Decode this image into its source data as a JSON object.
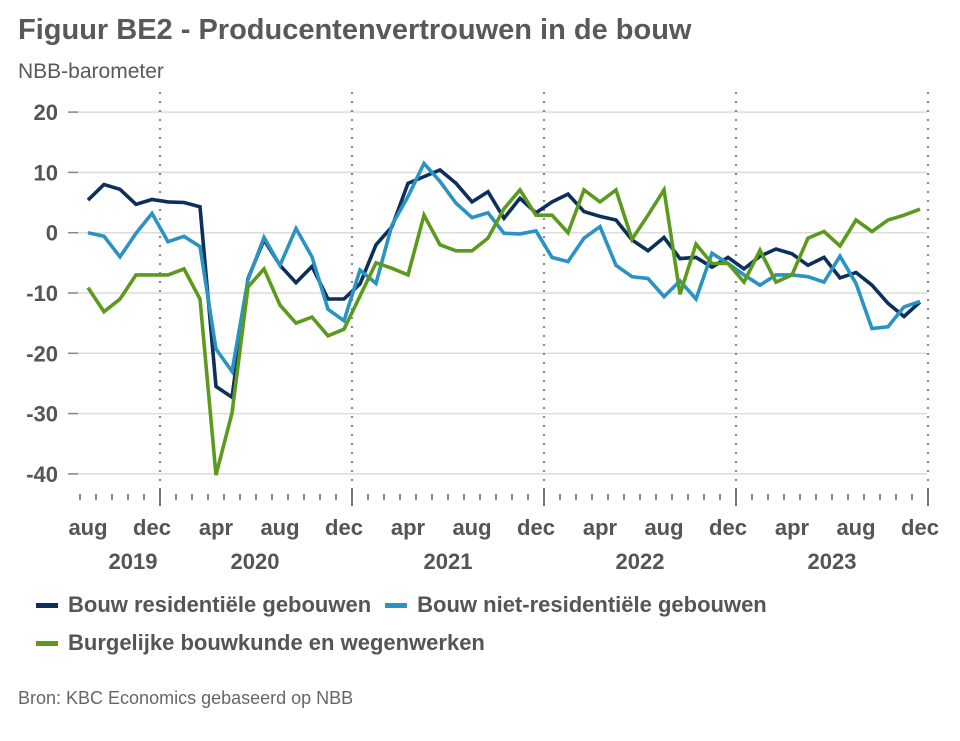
{
  "header": {
    "title": "Figuur BE2 - Producentenvertrouwen in de bouw",
    "subtitle": "NBB-barometer"
  },
  "source": "Bron: KBC Economics gebaseerd op NBB",
  "chart_data": {
    "type": "line",
    "title": "Figuur BE2 - Producentenvertrouwen in de bouw",
    "subtitle": "NBB-barometer",
    "xlabel": "",
    "ylabel": "",
    "ylim": [
      -40,
      20
    ],
    "yticks": [
      20,
      10,
      0,
      -10,
      -20,
      -30,
      -40
    ],
    "x_start": "aug 2019",
    "x_end": "dec 2023",
    "frequency": "monthly",
    "month_labels": [
      "aug",
      "dec",
      "apr",
      "aug",
      "dec",
      "apr",
      "aug",
      "dec",
      "apr",
      "aug",
      "dec",
      "apr",
      "aug",
      "dec"
    ],
    "year_labels": [
      "2019",
      "2020",
      "2021",
      "2022",
      "2023"
    ],
    "grid": true,
    "legend_position": "bottom",
    "series": [
      {
        "name": "Bouw residentiële gebouwen",
        "color": "#0c2f5c",
        "values": [
          5.4,
          8.0,
          7.2,
          4.7,
          5.5,
          5.1,
          5.0,
          4.3,
          -25.5,
          -27.3,
          -7.6,
          -1.2,
          -5.4,
          -8.3,
          -5.6,
          -11.0,
          -11.0,
          -8.5,
          -2.0,
          1.0,
          8.2,
          9.3,
          10.4,
          8.2,
          5.1,
          6.8,
          2.4,
          5.7,
          3.3,
          5.1,
          6.4,
          3.5,
          2.7,
          2.1,
          -1.2,
          -3.0,
          -0.8,
          -4.3,
          -4.1,
          -5.7,
          -4.1,
          -6.0,
          -3.9,
          -2.7,
          -3.5,
          -5.4,
          -4.1,
          -7.5,
          -6.6,
          -8.7,
          -11.7,
          -13.9,
          -11.5
        ]
      },
      {
        "name": "Bouw niet-residentiële gebouwen",
        "color": "#2b93c3",
        "values": [
          0.0,
          -0.6,
          -4.0,
          -0.1,
          3.2,
          -1.5,
          -0.6,
          -2.3,
          -19.3,
          -23.0,
          -7.8,
          -0.8,
          -5.4,
          0.7,
          -4.0,
          -12.7,
          -14.6,
          -6.2,
          -8.4,
          1.3,
          6.0,
          11.5,
          8.5,
          4.9,
          2.5,
          3.3,
          -0.1,
          -0.2,
          0.3,
          -4.1,
          -4.8,
          -0.9,
          1.0,
          -5.4,
          -7.3,
          -7.6,
          -10.6,
          -8.0,
          -11.0,
          -3.4,
          -5.1,
          -7.0,
          -8.7,
          -7.0,
          -7.0,
          -7.3,
          -8.2,
          -3.9,
          -8.4,
          -15.9,
          -15.6,
          -12.3,
          -11.4
        ]
      },
      {
        "name": "Burgelijke bouwkunde en wegenwerken",
        "color": "#5c9a1e",
        "values": [
          -9.1,
          -13.1,
          -11.0,
          -7.0,
          -7.0,
          -7.0,
          -6.0,
          -11.0,
          -40.2,
          -29.9,
          -9.0,
          -6.0,
          -12.0,
          -15.0,
          -14.0,
          -17.1,
          -16.0,
          -10.5,
          -5.0,
          -5.9,
          -7.0,
          2.9,
          -2.0,
          -3.0,
          -3.0,
          -0.9,
          4.0,
          7.1,
          2.9,
          2.9,
          0.0,
          7.1,
          5.1,
          7.1,
          -1.1,
          2.9,
          7.1,
          -10.2,
          -1.9,
          -5.1,
          -5.1,
          -8.2,
          -2.9,
          -8.2,
          -7.0,
          -0.9,
          0.2,
          -2.2,
          2.1,
          0.2,
          2.1,
          2.9,
          3.9
        ]
      }
    ]
  }
}
